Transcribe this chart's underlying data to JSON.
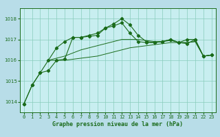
{
  "title": "Graphe pression niveau de la mer (hPa)",
  "bg_color": "#b8dde8",
  "plot_bg_color": "#c8eef0",
  "grid_color": "#88ccbb",
  "line_color": "#1a6b1a",
  "x_labels": [
    "0",
    "1",
    "2",
    "3",
    "4",
    "5",
    "6",
    "7",
    "8",
    "9",
    "10",
    "11",
    "12",
    "13",
    "14",
    "15",
    "16",
    "17",
    "18",
    "19",
    "20",
    "21",
    "22",
    "23"
  ],
  "ylim": [
    1013.5,
    1018.5
  ],
  "yticks": [
    1014,
    1015,
    1016,
    1017,
    1018
  ],
  "series1": [
    1013.9,
    1014.8,
    1015.4,
    1015.5,
    1016.0,
    1016.05,
    1017.1,
    1017.1,
    1017.2,
    1017.3,
    1017.55,
    1017.65,
    1017.8,
    1017.3,
    1016.9,
    1016.85,
    1016.85,
    1016.9,
    1017.0,
    1016.85,
    1016.8,
    1017.0,
    1016.2,
    1016.25
  ],
  "series2": [
    1013.9,
    1014.8,
    1015.4,
    1016.0,
    1016.6,
    1016.9,
    1017.1,
    1017.1,
    1017.15,
    1017.2,
    1017.55,
    1017.75,
    1018.0,
    1017.7,
    1017.2,
    1016.9,
    1016.85,
    1016.9,
    1017.0,
    1016.85,
    1017.0,
    1017.0,
    1016.2,
    1016.25
  ],
  "series3": [
    null,
    null,
    null,
    1016.0,
    1016.0,
    1016.0,
    1016.05,
    1016.1,
    1016.15,
    1016.2,
    1016.3,
    1016.4,
    1016.5,
    1016.6,
    1016.65,
    1016.7,
    1016.75,
    1016.8,
    1016.85,
    1016.85,
    1016.85,
    1016.9,
    1016.2,
    1016.25
  ],
  "series4": [
    null,
    null,
    null,
    1016.0,
    1016.1,
    1016.2,
    1016.35,
    1016.5,
    1016.6,
    1016.7,
    1016.8,
    1016.9,
    1017.0,
    1017.0,
    1017.0,
    1016.95,
    1016.9,
    1016.9,
    1016.95,
    1016.85,
    1016.85,
    1016.9,
    1016.2,
    1016.25
  ],
  "tick_fontsize": 5,
  "xlabel_fontsize": 6,
  "ylabel_fontsize": 5
}
